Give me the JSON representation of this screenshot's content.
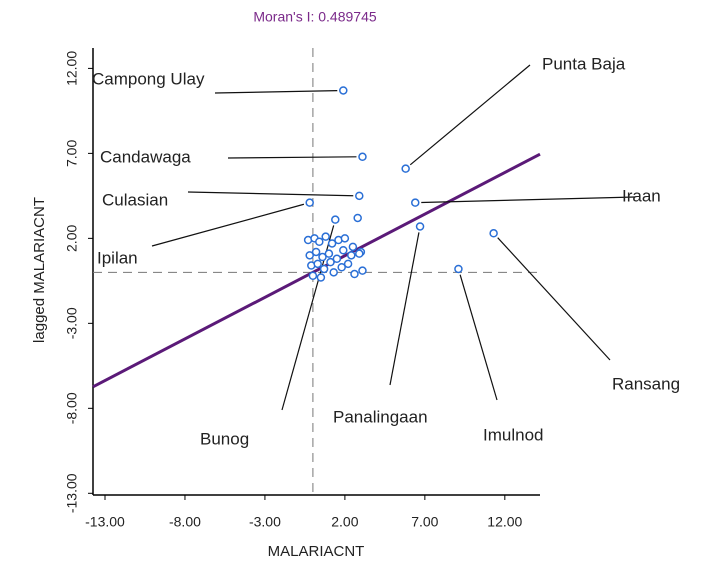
{
  "chart_data": {
    "type": "scatter",
    "title": "Moran's I: 0.489745",
    "x_label": "MALARIACNT",
    "y_label": "lagged MALARIACNT",
    "slope": 0.489745,
    "xlim": [
      -13.75,
      14.2
    ],
    "ylim": [
      -13.1,
      13.2
    ],
    "xticks": [
      {
        "value": -13,
        "label": "-13.00"
      },
      {
        "value": -8,
        "label": "-8.00"
      },
      {
        "value": -3,
        "label": "-3.00"
      },
      {
        "value": 2,
        "label": "2.00"
      },
      {
        "value": 7,
        "label": "7.00"
      },
      {
        "value": 12,
        "label": "12.00"
      }
    ],
    "yticks": [
      {
        "value": 12,
        "label": "12.00"
      },
      {
        "value": 7,
        "label": "7.00"
      },
      {
        "value": 2,
        "label": "2.00"
      },
      {
        "value": -3,
        "label": "-3.00"
      },
      {
        "value": -8,
        "label": "-8.00"
      },
      {
        "value": -13,
        "label": "-13.00"
      }
    ],
    "point_color": "#2a6fd6",
    "line_color": "#5b1a78",
    "series": [
      {
        "name": "MALARIACNT",
        "x": [
          1.9,
          3.1,
          5.8,
          2.9,
          -0.2,
          6.4,
          1.4,
          2.8,
          6.7,
          11.3,
          9.1,
          -0.3,
          0.1,
          0.4,
          0.8,
          1.2,
          1.6,
          2.0,
          2.5,
          3.0,
          -0.2,
          0.2,
          0.6,
          1.0,
          1.5,
          1.9,
          2.4,
          2.9,
          -0.1,
          0.3,
          0.7,
          1.1,
          1.8,
          2.2,
          3.1,
          0.0,
          0.5,
          1.3,
          2.6
        ],
        "values": [
          10.7,
          6.8,
          6.1,
          4.5,
          4.1,
          4.1,
          3.1,
          3.2,
          2.7,
          2.3,
          0.2,
          1.9,
          2.0,
          1.8,
          2.1,
          1.7,
          1.9,
          2.0,
          1.5,
          1.2,
          1.0,
          1.2,
          0.9,
          1.1,
          0.8,
          1.3,
          1.0,
          1.1,
          0.4,
          0.5,
          0.2,
          0.6,
          0.3,
          0.5,
          0.1,
          -0.2,
          -0.3,
          0.0,
          -0.1
        ],
        "labels": [
          "Campong Ulay",
          "Candawaga",
          "Punta Baja",
          "Culasian",
          "Ipilan",
          "Iraan",
          "Bunog",
          null,
          "Panalingaan",
          "Ransang",
          "Imulnod",
          null,
          null,
          null,
          null,
          null,
          null,
          null,
          null,
          null,
          null,
          null,
          null,
          null,
          null,
          null,
          null,
          null,
          null,
          null,
          null,
          null,
          null,
          null,
          null,
          null,
          null,
          null,
          null
        ]
      }
    ]
  }
}
